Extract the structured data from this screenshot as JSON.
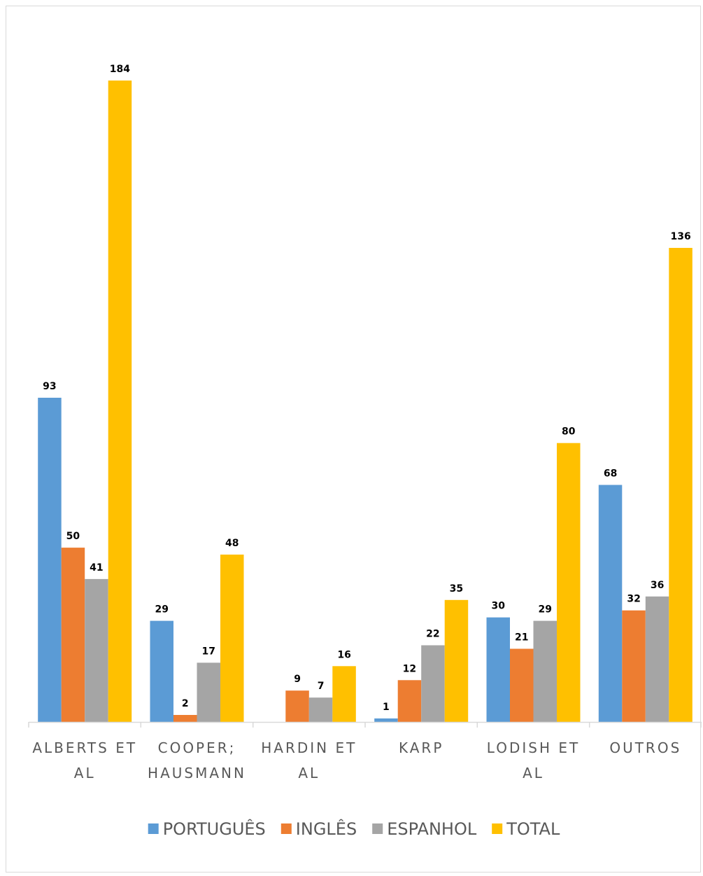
{
  "chart_data": {
    "type": "bar",
    "title": "",
    "xlabel": "",
    "ylabel": "",
    "categories": [
      [
        "ALBERTS ET",
        "AL"
      ],
      [
        "COOPER;",
        "HAUSMANN"
      ],
      [
        "HARDIN ET",
        "AL"
      ],
      [
        "KARP"
      ],
      [
        "LODISH ET",
        "AL"
      ],
      [
        "OUTROS"
      ]
    ],
    "series": [
      {
        "name": "PORTUGUÊS",
        "color": "#5b9bd5",
        "values": [
          93,
          29,
          0,
          1,
          30,
          68
        ],
        "labels": [
          "93",
          "29",
          "",
          "1",
          "30",
          "68"
        ]
      },
      {
        "name": "INGLÊS",
        "color": "#ed7d31",
        "values": [
          50,
          2,
          9,
          12,
          21,
          32
        ],
        "labels": [
          "50",
          "2",
          "9",
          "12",
          "21",
          "32"
        ]
      },
      {
        "name": "ESPANHOL",
        "color": "#a5a5a5",
        "values": [
          41,
          17,
          7,
          22,
          29,
          36
        ],
        "labels": [
          "41",
          "17",
          "7",
          "22",
          "29",
          "36"
        ]
      },
      {
        "name": "TOTAL",
        "color": "#ffc000",
        "values": [
          184,
          48,
          16,
          35,
          80,
          136
        ],
        "labels": [
          "184",
          "48",
          "16",
          "35",
          "80",
          "136"
        ]
      }
    ],
    "ylim": [
      0,
      184
    ],
    "grid": false,
    "axis_color": "#d9d9d9",
    "legend_position": "bottom"
  }
}
